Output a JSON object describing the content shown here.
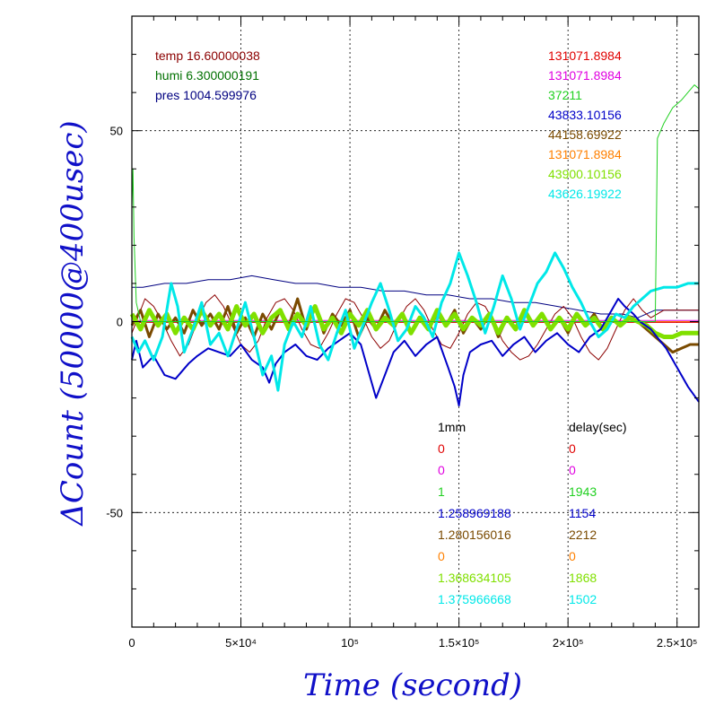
{
  "chart_data": {
    "type": "line",
    "xlabel": "Time (second)",
    "ylabel": "ΔCount (50000@400usec)",
    "xlim": [
      0,
      260000
    ],
    "ylim": [
      -80,
      80
    ],
    "grid": true,
    "x_ticks": [
      {
        "value": 0,
        "label": "0"
      },
      {
        "value": 50000,
        "label": "5×10⁴"
      },
      {
        "value": 100000,
        "label": "10⁵"
      },
      {
        "value": 150000,
        "label": "1.5×10⁵"
      },
      {
        "value": 200000,
        "label": "2×10⁵"
      },
      {
        "value": 250000,
        "label": "2.5×10⁵"
      }
    ],
    "y_ticks": [
      {
        "value": 50,
        "label": "50"
      },
      {
        "value": 0,
        "label": "0"
      },
      {
        "value": -50,
        "label": "-50"
      }
    ],
    "env_labels": [
      {
        "text": "temp 16.60000038",
        "color": "#8b0000"
      },
      {
        "text": "humi 6.300000191",
        "color": "#007000"
      },
      {
        "text": "pres 1004.599976",
        "color": "#000080"
      }
    ],
    "right_values": [
      {
        "text": "131071.8984",
        "color": "#e00000"
      },
      {
        "text": "131071.8984",
        "color": "#e000e0"
      },
      {
        "text": "37211",
        "color": "#20d020"
      },
      {
        "text": "43833.10156",
        "color": "#0000c8"
      },
      {
        "text": "44158.69922",
        "color": "#7a4a00"
      },
      {
        "text": "131071.8984",
        "color": "#ff8000"
      },
      {
        "text": "43900.10156",
        "color": "#80e000"
      },
      {
        "text": "43626.19922",
        "color": "#00e8e8"
      }
    ],
    "table_headers": [
      "1mm",
      "delay(sec)"
    ],
    "table_rows": [
      {
        "mm": "0",
        "delay": "0",
        "color": "#e00000"
      },
      {
        "mm": "0",
        "delay": "0",
        "color": "#e000e0"
      },
      {
        "mm": "1",
        "delay": "1943",
        "color": "#20d020"
      },
      {
        "mm": "1.258969188",
        "delay": "1154",
        "color": "#0000c8"
      },
      {
        "mm": "1.280156016",
        "delay": "2212",
        "color": "#7a4a00"
      },
      {
        "mm": "0",
        "delay": "0",
        "color": "#ff8000"
      },
      {
        "mm": "1.368634105",
        "delay": "1868",
        "color": "#80e000"
      },
      {
        "mm": "1.375966668",
        "delay": "1502",
        "color": "#00e8e8"
      }
    ],
    "series": [
      {
        "color": "#ff8000",
        "width": 1,
        "x": [
          0,
          260000
        ],
        "y": [
          0,
          0
        ]
      },
      {
        "color": "#000080",
        "width": 1,
        "x": [
          0,
          5000,
          15000,
          25000,
          35000,
          45000,
          55000,
          65000,
          75000,
          85000,
          95000,
          105000,
          115000,
          125000,
          135000,
          145000,
          155000,
          165000,
          175000,
          185000,
          195000,
          205000,
          215000,
          225000,
          232000,
          240000,
          250000,
          260000
        ],
        "y": [
          9,
          9,
          10,
          10,
          11,
          11,
          12,
          11,
          10,
          10,
          9,
          9,
          8,
          8,
          7,
          7,
          6,
          6,
          5,
          5,
          4,
          3,
          2,
          2,
          1,
          3,
          3,
          3
        ]
      },
      {
        "color": "#8b0000",
        "width": 1,
        "x": [
          0,
          6000,
          10000,
          14000,
          18000,
          22000,
          26000,
          30000,
          34000,
          38000,
          42000,
          46000,
          50000,
          54000,
          58000,
          62000,
          66000,
          70000,
          74000,
          78000,
          82000,
          86000,
          90000,
          94000,
          98000,
          102000,
          106000,
          110000,
          114000,
          118000,
          122000,
          126000,
          130000,
          134000,
          138000,
          142000,
          146000,
          150000,
          154000,
          158000,
          162000,
          166000,
          170000,
          174000,
          178000,
          182000,
          186000,
          190000,
          194000,
          198000,
          202000,
          206000,
          210000,
          214000,
          218000,
          222000,
          226000,
          230000,
          234000,
          238000,
          244000,
          252000,
          260000
        ],
        "y": [
          -3,
          6,
          4,
          0,
          -5,
          -9,
          -6,
          0,
          5,
          7,
          4,
          -1,
          -6,
          -8,
          -5,
          1,
          5,
          6,
          3,
          -2,
          -6,
          -7,
          -3,
          2,
          6,
          5,
          1,
          -4,
          -7,
          -5,
          0,
          4,
          6,
          3,
          -2,
          -6,
          -7,
          -3,
          2,
          5,
          4,
          0,
          -5,
          -8,
          -10,
          -9,
          -6,
          -2,
          2,
          4,
          1,
          -4,
          -8,
          -10,
          -7,
          -2,
          3,
          6,
          3,
          1,
          3,
          3,
          3
        ]
      },
      {
        "color": "#e000e0",
        "width": 1,
        "x": [
          0,
          260000
        ],
        "y": [
          0.3,
          0.3
        ]
      },
      {
        "color": "#e00000",
        "width": 1,
        "x": [
          0,
          260000
        ],
        "y": [
          -0.2,
          -0.2
        ]
      },
      {
        "color": "#7a4a00",
        "width": 3,
        "x": [
          0,
          4000,
          8000,
          12000,
          16000,
          20000,
          24000,
          28000,
          32000,
          36000,
          40000,
          44000,
          48000,
          52000,
          56000,
          60000,
          64000,
          68000,
          72000,
          76000,
          80000,
          84000,
          88000,
          92000,
          96000,
          100000,
          104000,
          108000,
          112000,
          116000,
          120000,
          124000,
          128000,
          132000,
          136000,
          140000,
          144000,
          148000,
          152000,
          156000,
          160000,
          164000,
          168000,
          172000,
          176000,
          180000,
          184000,
          188000,
          192000,
          196000,
          200000,
          204000,
          208000,
          212000,
          216000,
          220000,
          224000,
          228000,
          232000,
          236000,
          240000,
          244000,
          248000,
          252000,
          256000,
          260000
        ],
        "y": [
          -1,
          3,
          -4,
          2,
          -2,
          1,
          -3,
          3,
          -1,
          2,
          -2,
          4,
          -3,
          1,
          -4,
          2,
          -2,
          3,
          -1,
          6,
          -2,
          4,
          -3,
          2,
          -1,
          3,
          -4,
          1,
          -2,
          3,
          -1,
          2,
          -3,
          1,
          -2,
          2,
          -1,
          3,
          -3,
          1,
          -2,
          2,
          -4,
          1,
          -2,
          3,
          -1,
          2,
          -2,
          1,
          -3,
          2,
          -1,
          2,
          -2,
          1,
          -1,
          1,
          0,
          -2,
          -4,
          -6,
          -8,
          -7,
          -6,
          -6
        ]
      },
      {
        "color": "#80e000",
        "width": 5,
        "x": [
          0,
          4000,
          8000,
          12000,
          16000,
          20000,
          24000,
          28000,
          32000,
          36000,
          40000,
          44000,
          48000,
          52000,
          56000,
          60000,
          64000,
          68000,
          72000,
          76000,
          80000,
          84000,
          88000,
          92000,
          96000,
          100000,
          104000,
          108000,
          112000,
          116000,
          120000,
          124000,
          128000,
          132000,
          136000,
          140000,
          144000,
          148000,
          152000,
          156000,
          160000,
          164000,
          168000,
          172000,
          176000,
          180000,
          184000,
          188000,
          192000,
          196000,
          200000,
          204000,
          208000,
          212000,
          216000,
          220000,
          224000,
          228000,
          232000,
          236000,
          240000,
          244000,
          248000,
          252000,
          256000,
          260000
        ],
        "y": [
          2,
          -2,
          3,
          -1,
          2,
          -3,
          1,
          -2,
          3,
          -1,
          2,
          -2,
          4,
          -1,
          2,
          -3,
          1,
          3,
          -2,
          2,
          -1,
          4,
          -2,
          1,
          -3,
          2,
          -1,
          3,
          -2,
          1,
          -1,
          2,
          -3,
          1,
          -2,
          3,
          -1,
          2,
          -2,
          1,
          -1,
          2,
          -3,
          1,
          -2,
          3,
          -1,
          2,
          -2,
          1,
          -2,
          2,
          -1,
          1,
          -2,
          1,
          -1,
          1,
          0,
          -1,
          -3,
          -4,
          -4,
          -3,
          -3,
          -3
        ]
      },
      {
        "color": "#0000c8",
        "width": 2,
        "x": [
          0,
          2000,
          5000,
          10000,
          15000,
          20000,
          23000,
          26000,
          30000,
          35000,
          40000,
          45000,
          50000,
          55000,
          60000,
          63000,
          66000,
          70000,
          75000,
          80000,
          85000,
          90000,
          95000,
          100000,
          105000,
          108000,
          112000,
          116000,
          120000,
          125000,
          130000,
          135000,
          140000,
          145000,
          148000,
          150000,
          152000,
          155000,
          160000,
          165000,
          170000,
          175000,
          180000,
          185000,
          190000,
          195000,
          200000,
          205000,
          210000,
          215000,
          220000,
          223000,
          226000,
          230000,
          233000,
          238000,
          245000,
          250000,
          255000,
          260000
        ],
        "y": [
          -10,
          -5,
          -12,
          -9,
          -14,
          -15,
          -13,
          -11,
          -9,
          -7,
          -8,
          -9,
          -6,
          -10,
          -12,
          -16,
          -11,
          -8,
          -6,
          -9,
          -10,
          -7,
          -5,
          -3,
          -6,
          -12,
          -20,
          -14,
          -8,
          -5,
          -9,
          -6,
          -4,
          -12,
          -17,
          -22,
          -14,
          -8,
          -6,
          -5,
          -9,
          -6,
          -4,
          -8,
          -5,
          -3,
          -6,
          -8,
          -4,
          -2,
          3,
          6,
          4,
          2,
          0,
          -2,
          -7,
          -12,
          -17,
          -21
        ]
      },
      {
        "color": "#00e8e8",
        "width": 3,
        "x": [
          0,
          3000,
          6000,
          10000,
          14000,
          18000,
          21000,
          24000,
          28000,
          32000,
          36000,
          40000,
          44000,
          48000,
          52000,
          56000,
          60000,
          64000,
          67000,
          70000,
          74000,
          78000,
          82000,
          86000,
          90000,
          94000,
          98000,
          102000,
          106000,
          110000,
          114000,
          118000,
          122000,
          126000,
          130000,
          134000,
          138000,
          142000,
          146000,
          150000,
          154000,
          158000,
          162000,
          166000,
          170000,
          174000,
          178000,
          182000,
          186000,
          190000,
          194000,
          198000,
          202000,
          206000,
          210000,
          214000,
          218000,
          222000,
          226000,
          230000,
          234000,
          238000,
          244000,
          250000,
          255000,
          260000
        ],
        "y": [
          -4,
          -8,
          -5,
          -10,
          -4,
          10,
          4,
          -8,
          -2,
          5,
          -6,
          -3,
          -9,
          -2,
          5,
          -4,
          -14,
          -9,
          -18,
          -6,
          0,
          -4,
          4,
          -6,
          -10,
          -3,
          3,
          -7,
          -1,
          5,
          10,
          3,
          -5,
          -2,
          4,
          1,
          -4,
          5,
          10,
          18,
          12,
          5,
          -3,
          4,
          12,
          6,
          -2,
          4,
          10,
          13,
          18,
          14,
          9,
          5,
          0,
          -4,
          -2,
          2,
          1,
          4,
          6,
          8,
          9,
          9,
          10,
          10
        ]
      },
      {
        "color": "#20d020",
        "width": 1,
        "x": [
          0,
          500,
          1000,
          2000,
          4000,
          240000,
          241000,
          244000,
          248000,
          252000,
          255000,
          258000,
          260000
        ],
        "y": [
          30,
          40,
          22,
          5,
          0,
          0,
          48,
          52,
          56,
          58,
          60,
          62,
          61
        ]
      }
    ]
  }
}
